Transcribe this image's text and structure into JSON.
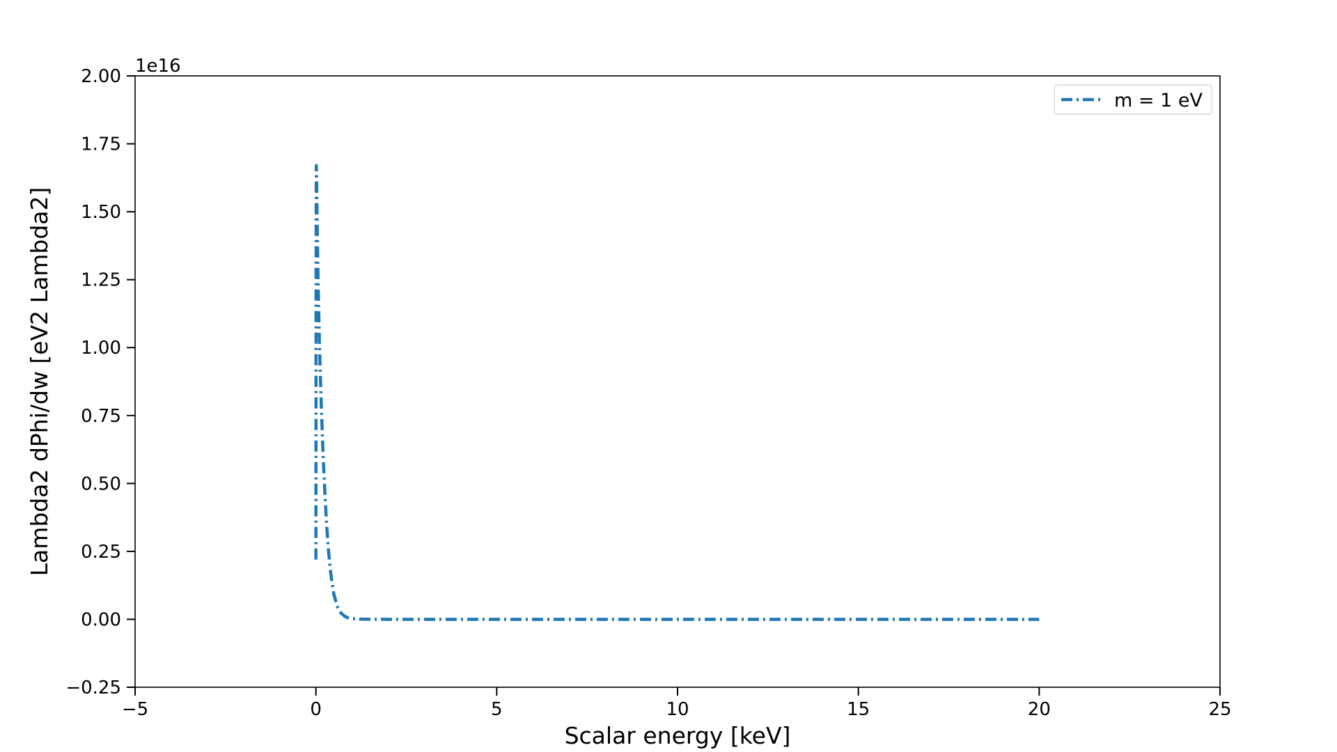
{
  "chart_data": {
    "type": "line",
    "title": "",
    "xlabel": "Scalar energy [keV]",
    "ylabel": "Lambda2 dPhi/dw [eV2 Lambda2]",
    "y_offset_text": "1e16",
    "xlim": [
      -5,
      25
    ],
    "ylim": [
      -0.25,
      2.0
    ],
    "y_scale_factor": 1e+16,
    "x_ticks": [
      -5,
      0,
      5,
      10,
      15,
      20,
      25
    ],
    "x_tick_labels": [
      "−5",
      "0",
      "5",
      "10",
      "15",
      "20",
      "25"
    ],
    "y_ticks": [
      -0.25,
      0.0,
      0.25,
      0.5,
      0.75,
      1.0,
      1.25,
      1.5,
      1.75,
      2.0
    ],
    "y_tick_labels": [
      "−0.25",
      "0.00",
      "0.25",
      "0.50",
      "0.75",
      "1.00",
      "1.25",
      "1.50",
      "1.75",
      "2.00"
    ],
    "grid": false,
    "legend_position": "top-right",
    "series": [
      {
        "name": "m = 1 eV",
        "color": "#1f77b4",
        "linestyle": "dashdot",
        "x": [
          0.0,
          0.005,
          0.01,
          0.02,
          0.03,
          0.05,
          0.08,
          0.1,
          0.15,
          0.2,
          0.25,
          0.3,
          0.35,
          0.4,
          0.45,
          0.5,
          0.6,
          0.7,
          0.8,
          0.9,
          1.0,
          1.2,
          1.5,
          2.0,
          3.0,
          4.0,
          5.0,
          6.0,
          8.0,
          10.0,
          12.0,
          14.0,
          16.0,
          18.0,
          20.0
        ],
        "y": [
          0.22,
          1.3,
          1.67,
          1.62,
          1.5,
          1.32,
          1.12,
          1.0,
          0.78,
          0.6,
          0.46,
          0.34,
          0.25,
          0.18,
          0.13,
          0.09,
          0.045,
          0.022,
          0.011,
          0.005,
          0.0025,
          0.0008,
          0.0001,
          0.0,
          0.0,
          0.0,
          0.0,
          0.0,
          0.0,
          0.0,
          0.0,
          0.0,
          0.0,
          0.0,
          0.0
        ]
      }
    ]
  }
}
